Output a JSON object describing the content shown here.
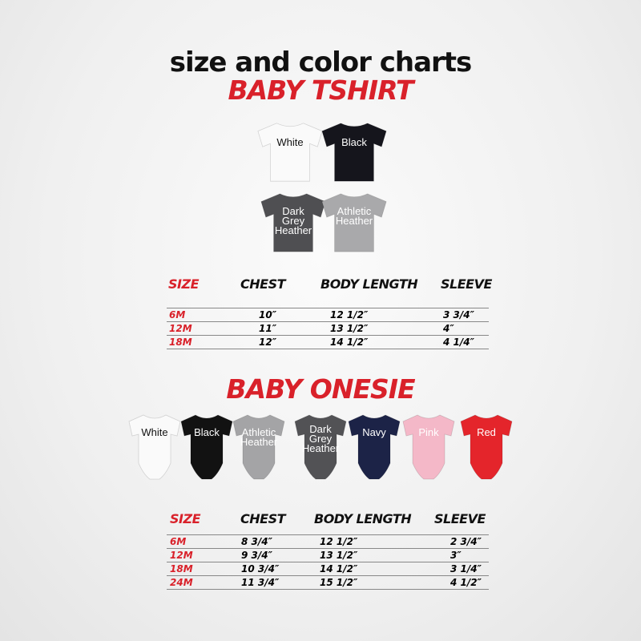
{
  "header": {
    "title": "size and color charts",
    "subtitle": "BABY TSHIRT"
  },
  "colors": {
    "accent": "#d9212a"
  },
  "tshirts": [
    {
      "label": "White",
      "color": "#fafafa",
      "text": "#111"
    },
    {
      "label": "Black",
      "color": "#15151c",
      "text": "#fff"
    },
    {
      "label": "Dark Grey Heather",
      "color": "#4f4f52",
      "text": "#fff"
    },
    {
      "label": "Athletic Heather",
      "color": "#a9a9ab",
      "text": "#fff"
    }
  ],
  "tshirt_table": {
    "headers": [
      "SIZE",
      "CHEST",
      "BODY LENGTH",
      "SLEEVE"
    ],
    "rows": [
      [
        "6M",
        "10″",
        "12 1/2″",
        "3 3/4″"
      ],
      [
        "12M",
        "11″",
        "13 1/2″",
        "4″"
      ],
      [
        "18M",
        "12″",
        "14 1/2″",
        "4 1/4″"
      ]
    ]
  },
  "onesie_title": "BABY ONESIE",
  "onesies": [
    {
      "label": "White",
      "color": "#fafafa",
      "text": "#111"
    },
    {
      "label": "Black",
      "color": "#121212",
      "text": "#fff"
    },
    {
      "label": "Athletic Heather",
      "color": "#a4a4a6",
      "text": "#fff"
    },
    {
      "label": "Dark Grey Heather",
      "color": "#525255",
      "text": "#fff"
    },
    {
      "label": "Navy",
      "color": "#1c2347",
      "text": "#fff"
    },
    {
      "label": "Pink",
      "color": "#f4b8c8",
      "text": "#fff"
    },
    {
      "label": "Red",
      "color": "#e4252b",
      "text": "#fff"
    }
  ],
  "onesie_table": {
    "headers": [
      "SIZE",
      "CHEST",
      "BODY LENGTH",
      "SLEEVE"
    ],
    "rows": [
      [
        "6M",
        "8 3/4″",
        "12 1/2″",
        "2 3/4″"
      ],
      [
        "12M",
        "9 3/4″",
        "13 1/2″",
        "3″"
      ],
      [
        "18M",
        "10 3/4″",
        "14 1/2″",
        "3 1/4″"
      ],
      [
        "24M",
        "11 3/4″",
        "15 1/2″",
        "4 1/2″"
      ]
    ]
  }
}
